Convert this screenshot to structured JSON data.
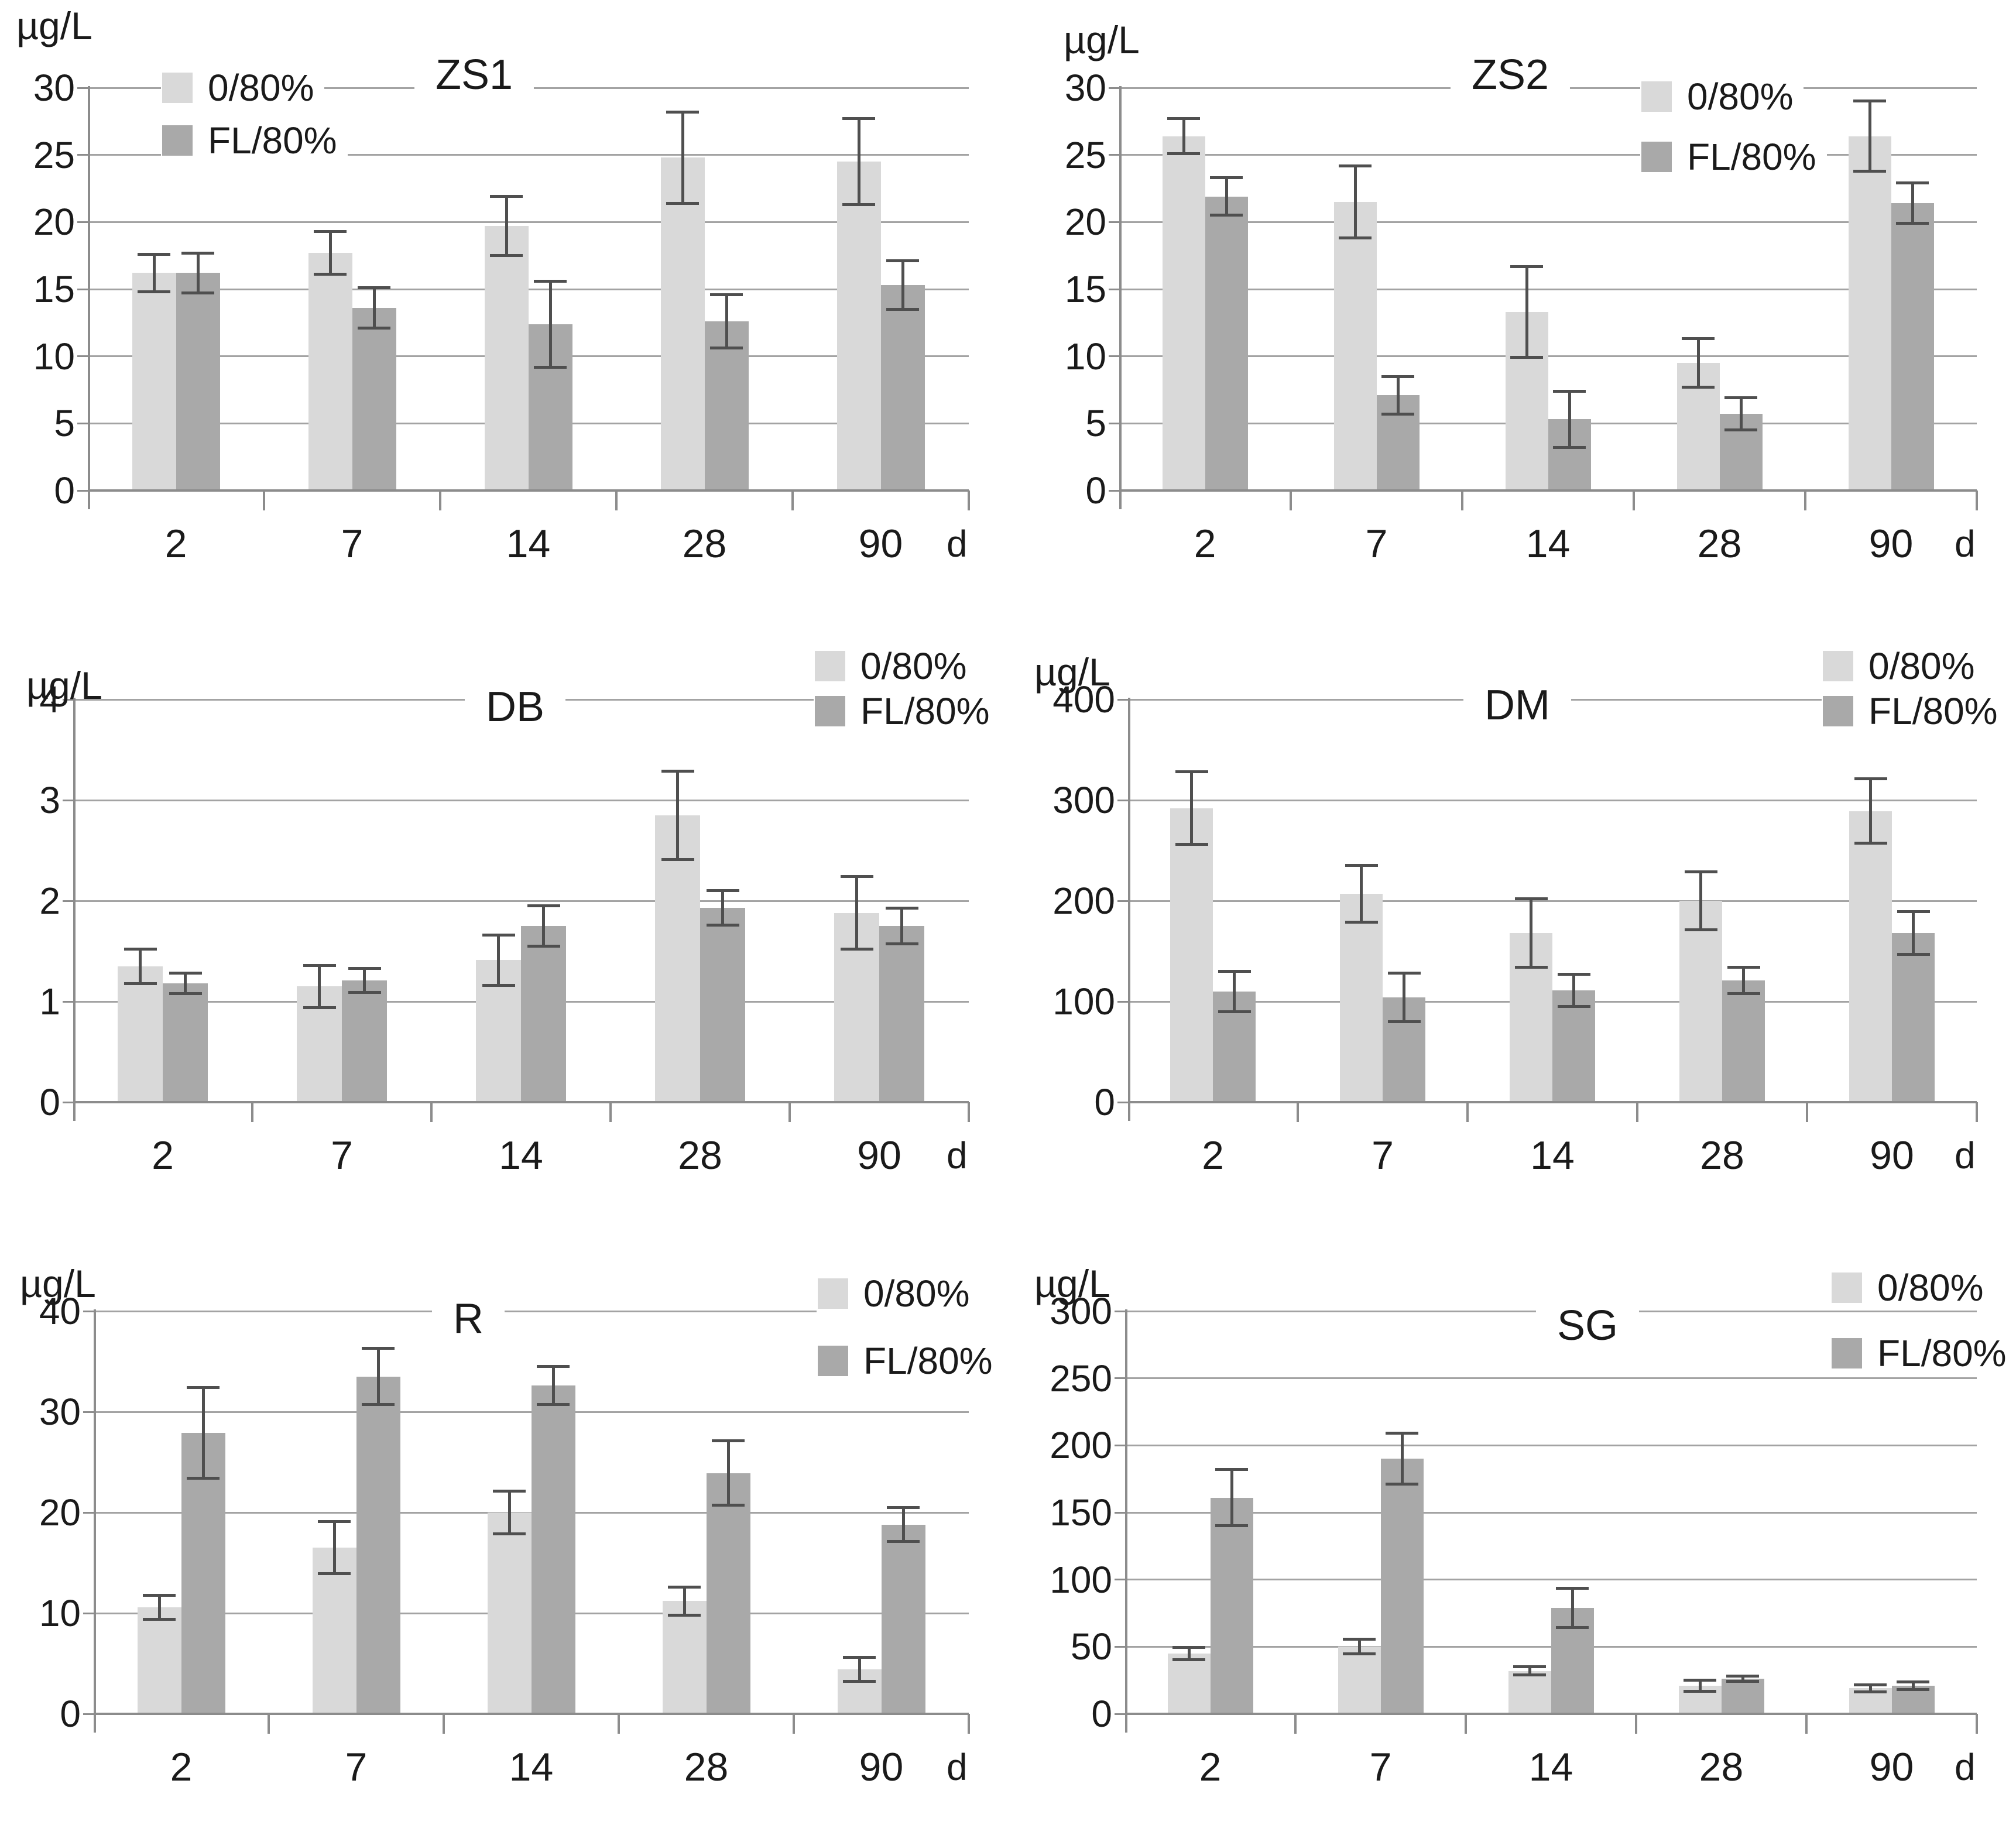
{
  "figure": {
    "unit_label": "µg/L",
    "x_unit_label": "d",
    "legend_labels": [
      "0/80%",
      "FL/80%"
    ]
  },
  "colors": {
    "series1_fill": "#d9d9d9",
    "series2_fill": "#a9a9a9",
    "gridline": "#a3a3a3",
    "axis": "#8c8c8c",
    "error_bar": "#4f4f4f",
    "text": "#1a1a1a",
    "background": "#ffffff"
  },
  "chart_data": [
    {
      "type": "bar",
      "title": "ZS1",
      "ylabel": "µg/L",
      "xlabel": "d",
      "ylim": [
        0,
        30
      ],
      "yticks": [
        0,
        5,
        10,
        15,
        20,
        25,
        30
      ],
      "categories": [
        "2",
        "7",
        "14",
        "28",
        "90"
      ],
      "grid": true,
      "legend_position": "top-left",
      "series": [
        {
          "name": "0/80%",
          "values": [
            16.2,
            17.7,
            19.7,
            24.8,
            24.5
          ],
          "errors": [
            1.4,
            1.6,
            2.2,
            3.4,
            3.2
          ]
        },
        {
          "name": "FL/80%",
          "values": [
            16.2,
            13.6,
            12.4,
            12.6,
            15.3
          ],
          "errors": [
            1.5,
            1.5,
            3.2,
            2.0,
            1.8
          ]
        }
      ]
    },
    {
      "type": "bar",
      "title": "ZS2",
      "ylabel": "µg/L",
      "xlabel": "d",
      "ylim": [
        0,
        30
      ],
      "yticks": [
        0,
        5,
        10,
        15,
        20,
        25,
        30
      ],
      "categories": [
        "2",
        "7",
        "14",
        "28",
        "90"
      ],
      "grid": true,
      "legend_position": "right-of-title",
      "series": [
        {
          "name": "0/80%",
          "values": [
            26.4,
            21.5,
            13.3,
            9.5,
            26.4
          ],
          "errors": [
            1.3,
            2.7,
            3.4,
            1.8,
            2.6
          ]
        },
        {
          "name": "FL/80%",
          "values": [
            21.9,
            7.1,
            5.3,
            5.7,
            21.4
          ],
          "errors": [
            1.4,
            1.4,
            2.1,
            1.2,
            1.5
          ]
        }
      ]
    },
    {
      "type": "bar",
      "title": "DB",
      "ylabel": "µg/L",
      "xlabel": "d",
      "ylim": [
        0,
        4
      ],
      "yticks": [
        0,
        1,
        2,
        3,
        4
      ],
      "categories": [
        "2",
        "7",
        "14",
        "28",
        "90"
      ],
      "grid": true,
      "legend_position": "top-right",
      "series": [
        {
          "name": "0/80%",
          "values": [
            1.35,
            1.15,
            1.41,
            2.85,
            1.88
          ],
          "errors": [
            0.17,
            0.21,
            0.25,
            0.44,
            0.36
          ]
        },
        {
          "name": "FL/80%",
          "values": [
            1.18,
            1.21,
            1.75,
            1.93,
            1.75
          ],
          "errors": [
            0.1,
            0.12,
            0.2,
            0.17,
            0.18
          ]
        }
      ]
    },
    {
      "type": "bar",
      "title": "DM",
      "ylabel": "µg/L",
      "xlabel": "d",
      "ylim": [
        0,
        400
      ],
      "yticks": [
        0,
        100,
        200,
        300,
        400
      ],
      "categories": [
        "2",
        "7",
        "14",
        "28",
        "90"
      ],
      "grid": true,
      "legend_position": "top-right",
      "series": [
        {
          "name": "0/80%",
          "values": [
            292,
            207,
            168,
            200,
            289
          ],
          "errors": [
            36,
            28,
            34,
            29,
            32
          ]
        },
        {
          "name": "FL/80%",
          "values": [
            110,
            104,
            111,
            121,
            168
          ],
          "errors": [
            20,
            24,
            16,
            13,
            21
          ]
        }
      ]
    },
    {
      "type": "bar",
      "title": "R",
      "ylabel": "µg/L",
      "xlabel": "d",
      "ylim": [
        0,
        40
      ],
      "yticks": [
        0,
        10,
        20,
        30,
        40
      ],
      "categories": [
        "2",
        "7",
        "14",
        "28",
        "90"
      ],
      "grid": true,
      "legend_position": "top-right",
      "series": [
        {
          "name": "0/80%",
          "values": [
            10.6,
            16.5,
            20.0,
            11.2,
            4.4
          ],
          "errors": [
            1.2,
            2.6,
            2.1,
            1.4,
            1.2
          ]
        },
        {
          "name": "FL/80%",
          "values": [
            27.9,
            33.5,
            32.6,
            23.9,
            18.8
          ],
          "errors": [
            4.5,
            2.8,
            1.9,
            3.2,
            1.7
          ]
        }
      ]
    },
    {
      "type": "bar",
      "title": "SG",
      "ylabel": "µg/L",
      "xlabel": "d",
      "ylim": [
        0,
        300
      ],
      "yticks": [
        0,
        50,
        100,
        150,
        200,
        250,
        300
      ],
      "categories": [
        "2",
        "7",
        "14",
        "28",
        "90"
      ],
      "grid": true,
      "legend_position": "top-right",
      "series": [
        {
          "name": "0/80%",
          "values": [
            45,
            50,
            32,
            21,
            19
          ],
          "errors": [
            4.5,
            5.5,
            3.0,
            4.0,
            2.5
          ]
        },
        {
          "name": "FL/80%",
          "values": [
            161,
            190,
            79,
            26,
            21
          ],
          "errors": [
            21,
            19,
            14.5,
            2.0,
            2.7
          ]
        }
      ]
    }
  ]
}
